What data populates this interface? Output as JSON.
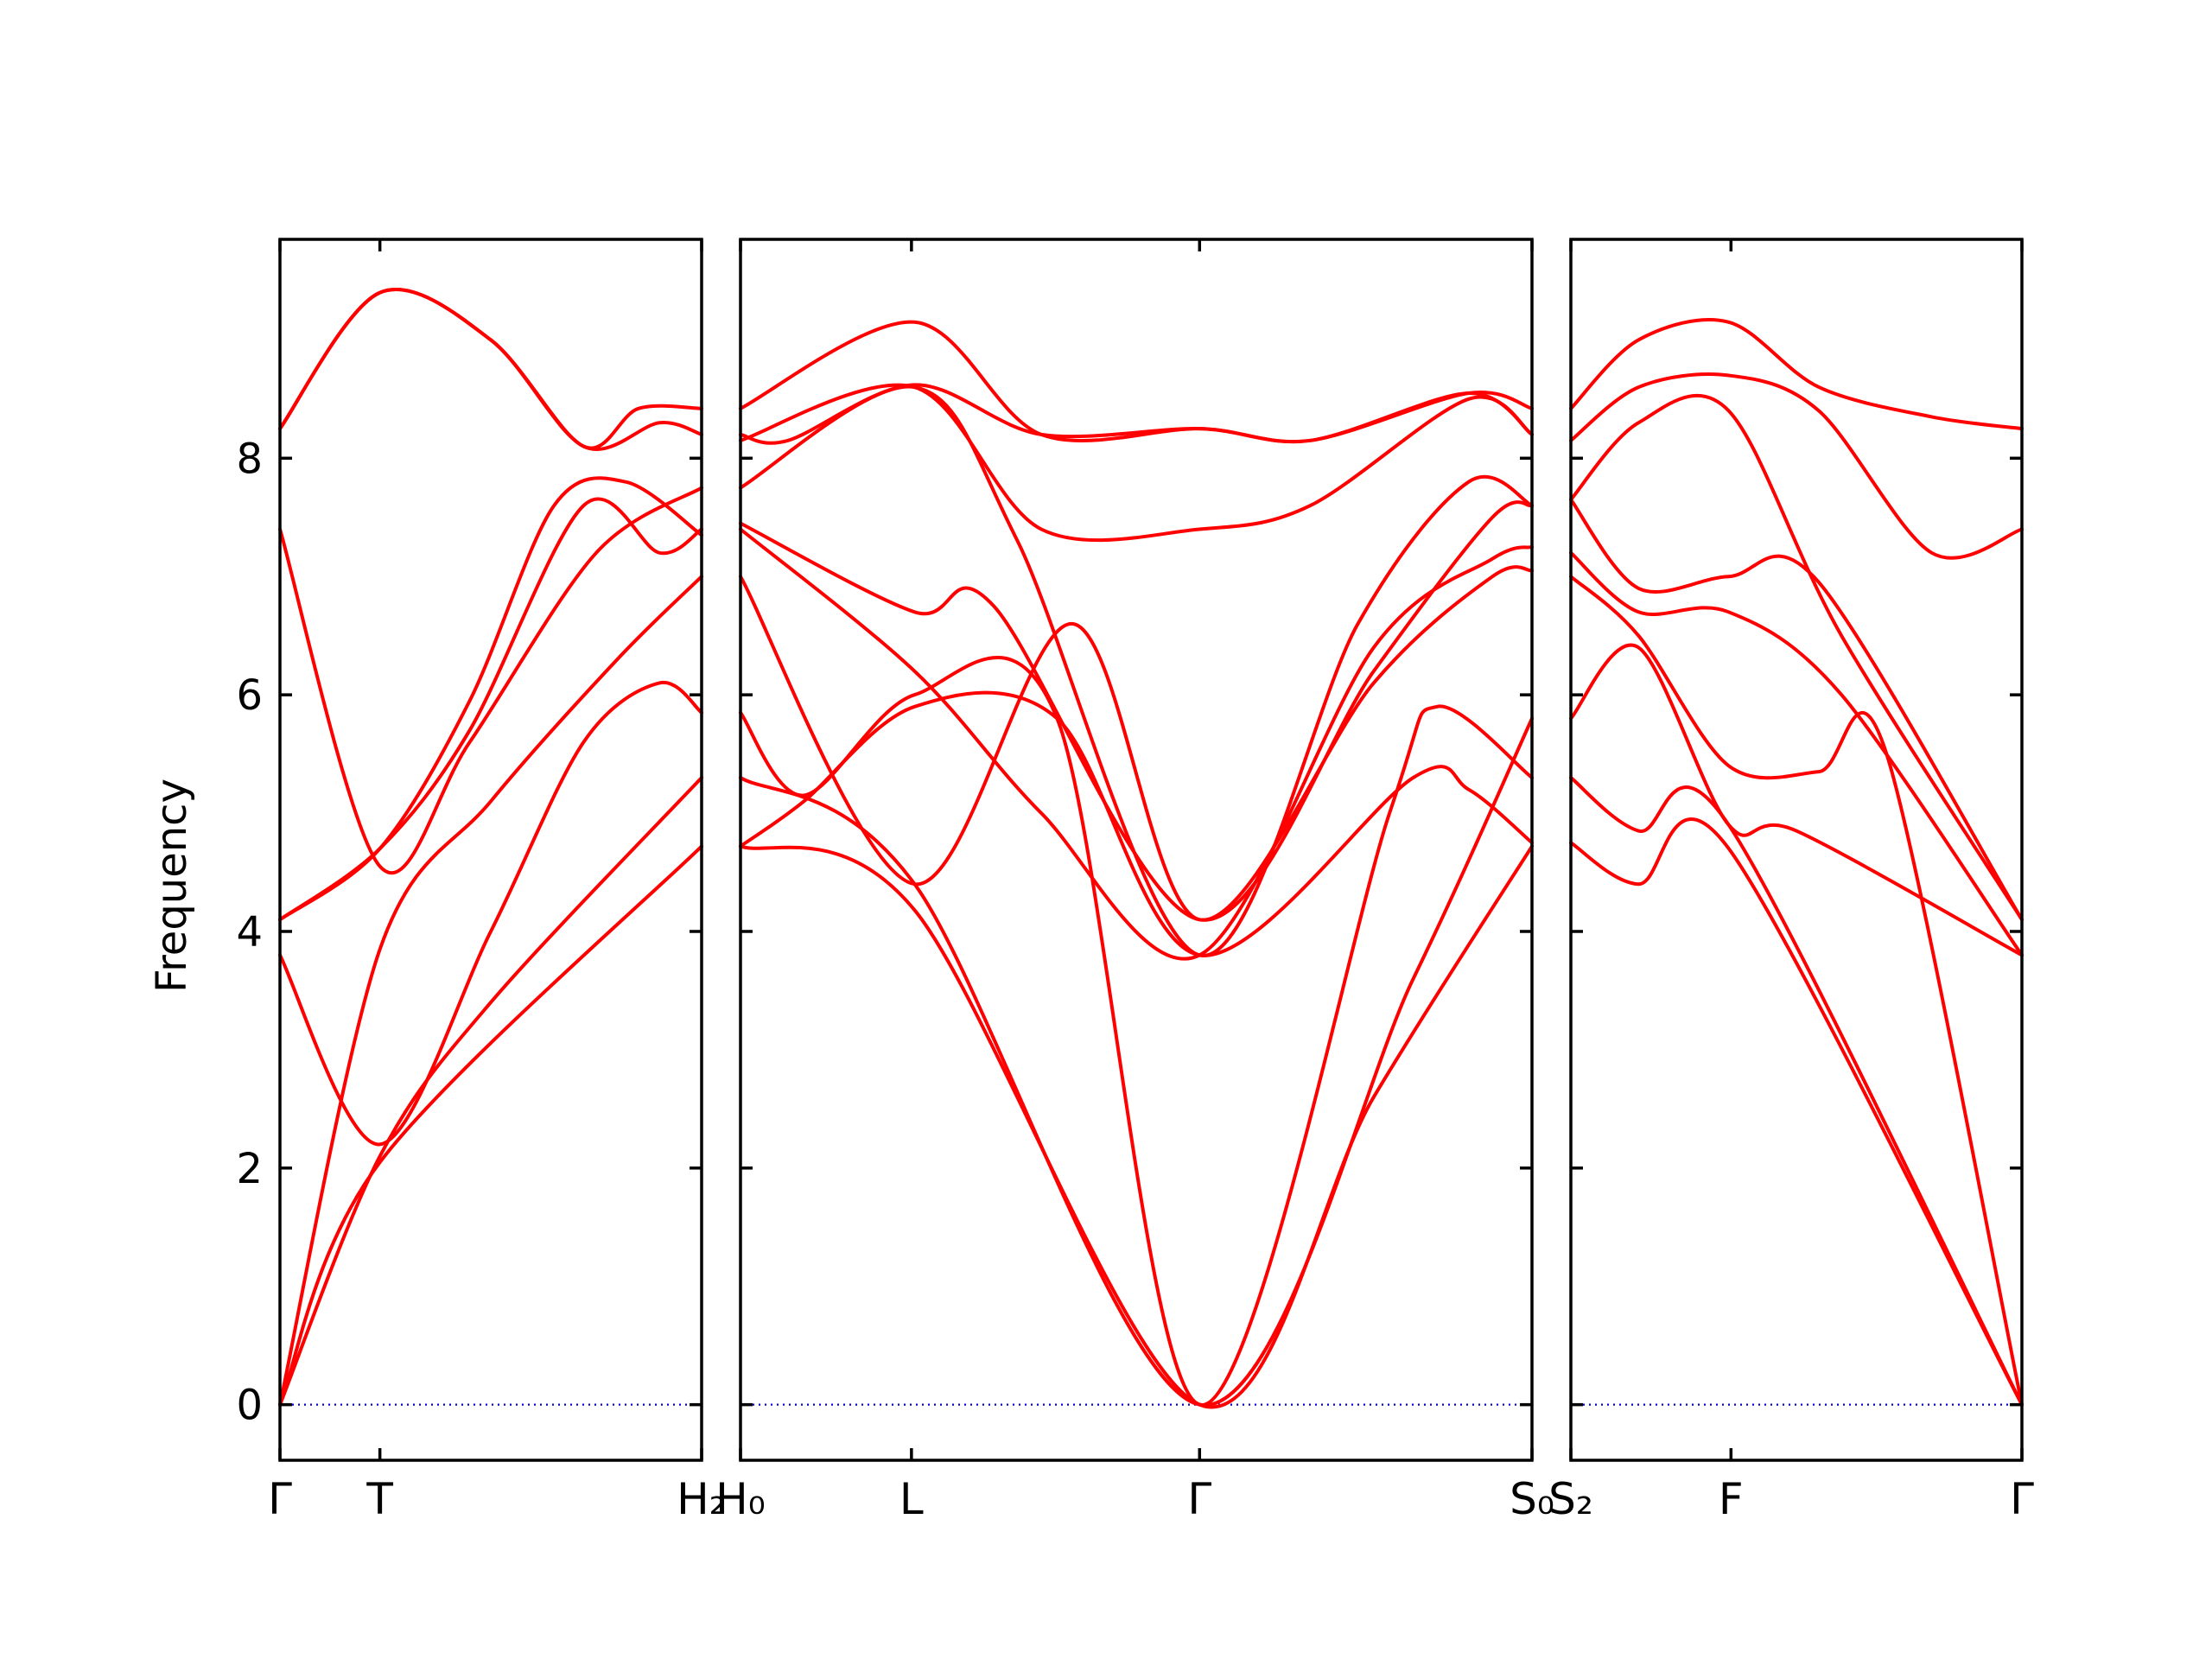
{
  "chart_data": {
    "type": "line",
    "ylabel": "Frequency",
    "ylim": [
      -0.47,
      9.85
    ],
    "yticks": [
      "0",
      "2",
      "4",
      "6",
      "8"
    ],
    "ytick_values": [
      0,
      2,
      4,
      6,
      8
    ],
    "colors": {
      "bands": "#ff0000",
      "zero_line": "#0000cc",
      "axes": "#000000"
    },
    "grid": false,
    "segments": [
      {
        "labels": [
          "Γ",
          "T",
          "H₂"
        ],
        "label_positions": [
          0,
          0.237,
          1
        ],
        "x_range": [
          0,
          1
        ],
        "series": [
          {
            "x": [
              0,
              0.237,
              1
            ],
            "y": [
              0,
              2.05,
              4.72
            ]
          },
          {
            "x": [
              0,
              0.237,
              0.5,
              1
            ],
            "y": [
              0,
              2.1,
              3.4,
              5.3
            ]
          },
          {
            "x": [
              0,
              0.237,
              0.5,
              0.72,
              0.9,
              1
            ],
            "y": [
              3.8,
              2.2,
              4.0,
              5.6,
              6.1,
              5.85
            ]
          },
          {
            "x": [
              0,
              0.237,
              0.5,
              0.8,
              1
            ],
            "y": [
              0,
              3.85,
              5.1,
              6.3,
              7.0
            ]
          },
          {
            "x": [
              0,
              0.237,
              0.45,
              0.75,
              1
            ],
            "y": [
              7.4,
              4.55,
              5.6,
              7.2,
              7.75
            ]
          },
          {
            "x": [
              0,
              0.237,
              0.45,
              0.72,
              0.9,
              1
            ],
            "y": [
              4.1,
              4.7,
              5.7,
              7.6,
              7.2,
              7.4
            ]
          },
          {
            "x": [
              0,
              0.237,
              0.45,
              0.65,
              0.82,
              1
            ],
            "y": [
              4.1,
              4.7,
              5.95,
              7.6,
              7.8,
              7.35
            ]
          },
          {
            "x": [
              0,
              0.237,
              0.5,
              0.72,
              0.9,
              1
            ],
            "y": [
              8.25,
              9.4,
              9.0,
              8.1,
              8.3,
              8.2
            ]
          },
          {
            "x": [
              0,
              0.237,
              0.5,
              0.72,
              0.85,
              1
            ],
            "y": [
              8.25,
              9.4,
              9.0,
              8.1,
              8.42,
              8.42
            ]
          }
        ]
      },
      {
        "labels": [
          "H₀",
          "L",
          "Γ",
          "S₀"
        ],
        "label_positions": [
          0,
          0.216,
          0.58,
          1
        ],
        "x_range": [
          0,
          1
        ],
        "series": [
          {
            "x": [
              0,
              0.22,
              0.58,
              0.8,
              1
            ],
            "y": [
              4.72,
              4.18,
              0,
              2.6,
              4.72
            ]
          },
          {
            "x": [
              0,
              0.22,
              0.58,
              0.85,
              1
            ],
            "y": [
              5.3,
              4.4,
              0,
              3.6,
              5.8
            ]
          },
          {
            "x": [
              0,
              0.08,
              0.22,
              0.4,
              0.58,
              0.82,
              0.88,
              1
            ],
            "y": [
              5.85,
              5.15,
              6.0,
              5.8,
              0,
              5.0,
              5.9,
              5.3
            ]
          },
          {
            "x": [
              0,
              0.08,
              0.22,
              0.4,
              0.58,
              0.85,
              0.92,
              1
            ],
            "y": [
              4.72,
              5.1,
              5.9,
              5.8,
              3.8,
              5.3,
              5.2,
              4.75
            ]
          },
          {
            "x": [
              0,
              0.22,
              0.42,
              0.58,
              0.8,
              0.95,
              1
            ],
            "y": [
              7.0,
              4.4,
              6.6,
              4.1,
              6.1,
              7.0,
              7.05
            ]
          },
          {
            "x": [
              0,
              0.22,
              0.38,
              0.58,
              0.8,
              0.95,
              1
            ],
            "y": [
              7.4,
              6.2,
              5.0,
              3.8,
              6.4,
              7.15,
              7.25
            ]
          },
          {
            "x": [
              0,
              0.22,
              0.32,
              0.58,
              0.8,
              0.95,
              1
            ],
            "y": [
              7.45,
              6.7,
              6.75,
              4.1,
              6.2,
              7.5,
              7.6
            ]
          },
          {
            "x": [
              0,
              0.22,
              0.35,
              0.58,
              0.78,
              0.92,
              1
            ],
            "y": [
              7.75,
              8.6,
              7.3,
              3.8,
              6.6,
              7.8,
              7.6
            ]
          },
          {
            "x": [
              0,
              0.22,
              0.38,
              0.58,
              0.72,
              0.92,
              1
            ],
            "y": [
              8.15,
              8.6,
              7.4,
              7.4,
              7.6,
              8.5,
              8.2
            ]
          },
          {
            "x": [
              0,
              0.06,
              0.22,
              0.38,
              0.58,
              0.72,
              0.92,
              1
            ],
            "y": [
              8.2,
              8.15,
              8.62,
              8.2,
              8.25,
              8.15,
              8.55,
              8.2
            ]
          },
          {
            "x": [
              0,
              0.22,
              0.38,
              0.58,
              0.72,
              0.92,
              1
            ],
            "y": [
              8.42,
              9.15,
              8.2,
              8.25,
              8.15,
              8.55,
              8.42
            ]
          }
        ]
      },
      {
        "labels": [
          "S₂",
          "F",
          "Γ"
        ],
        "label_positions": [
          0,
          0.355,
          1
        ],
        "x_range": [
          0,
          1
        ],
        "series": [
          {
            "x": [
              0,
              0.15,
              0.35,
              1
            ],
            "y": [
              4.75,
              4.4,
              4.7,
              0
            ]
          },
          {
            "x": [
              0,
              0.15,
              0.35,
              1
            ],
            "y": [
              5.3,
              4.85,
              4.9,
              0
            ]
          },
          {
            "x": [
              0,
              0.15,
              0.35,
              0.5,
              1
            ],
            "y": [
              5.8,
              6.4,
              4.9,
              4.85,
              3.8
            ]
          },
          {
            "x": [
              0,
              0.15,
              0.35,
              0.55,
              0.7,
              1
            ],
            "y": [
              7.0,
              6.5,
              5.4,
              5.35,
              5.5,
              0
            ]
          },
          {
            "x": [
              0,
              0.15,
              0.35,
              0.55,
              1
            ],
            "y": [
              7.65,
              6.9,
              7.0,
              6.95,
              4.1
            ]
          },
          {
            "x": [
              0,
              0.15,
              0.35,
              0.6,
              1
            ],
            "y": [
              7.2,
              6.7,
              6.7,
              6.0,
              3.8
            ]
          },
          {
            "x": [
              0,
              0.15,
              0.35,
              0.6,
              1
            ],
            "y": [
              7.65,
              8.3,
              8.4,
              6.5,
              4.1
            ]
          },
          {
            "x": [
              0,
              0.15,
              0.35,
              0.55,
              0.8,
              1
            ],
            "y": [
              8.15,
              8.6,
              8.7,
              8.4,
              7.2,
              7.4
            ]
          },
          {
            "x": [
              0,
              0.15,
              0.35,
              0.55,
              0.8,
              1
            ],
            "y": [
              8.42,
              9.0,
              9.15,
              8.6,
              8.35,
              8.25
            ]
          }
        ]
      }
    ]
  }
}
